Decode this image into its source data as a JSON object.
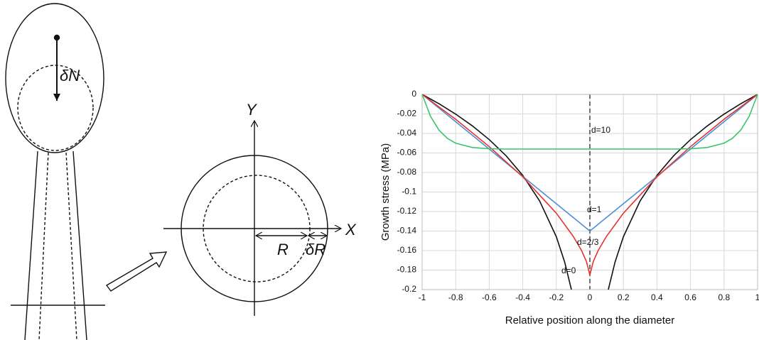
{
  "diagram": {
    "labels": {
      "dN": "δN",
      "y_axis": "Y",
      "x_axis": "X",
      "radius": "R",
      "dR": "δR"
    }
  },
  "chart_data": {
    "type": "line",
    "x_label": "Relative position along the diameter",
    "y_label": "Growth stress (MPa)",
    "xlim": [
      -1,
      1
    ],
    "ylim": [
      -0.2,
      0
    ],
    "xticks": [
      -1,
      -0.8,
      -0.6,
      -0.4,
      -0.2,
      0,
      0.2,
      0.4,
      0.6,
      0.8,
      1
    ],
    "yticks": [
      0,
      -0.02,
      -0.04,
      -0.06,
      -0.08,
      -0.1,
      -0.12,
      -0.14,
      -0.16,
      -0.18,
      -0.2
    ],
    "grid": true,
    "annotations": [
      "d=10",
      "d=1",
      "d=2/3",
      "d=0"
    ],
    "series": [
      {
        "color": "#111111",
        "x": [
          -1,
          -0.9,
          -0.8,
          -0.7,
          -0.6,
          -0.5,
          -0.4,
          -0.3,
          -0.2,
          -0.15,
          -0.11,
          0,
          0.11,
          0.15,
          0.2,
          0.3,
          0.4,
          0.5,
          0.6,
          0.7,
          0.8,
          0.9,
          1
        ],
        "values": [
          0,
          -0.0095,
          -0.0202,
          -0.0323,
          -0.0463,
          -0.0628,
          -0.083,
          -0.109,
          -0.1458,
          -0.1719,
          -0.2,
          null,
          -0.2,
          -0.1719,
          -0.1458,
          -0.109,
          -0.083,
          -0.0628,
          -0.0463,
          -0.0323,
          -0.0202,
          -0.0095,
          0
        ]
      },
      {
        "color": "#4a90d9",
        "x": [
          -1,
          0,
          1
        ],
        "values": [
          0,
          -0.14,
          0
        ]
      },
      {
        "color": "#e8302a",
        "x": [
          -1,
          -0.8,
          -0.6,
          -0.4,
          -0.2,
          -0.1,
          -0.05,
          -0.02,
          0,
          0.02,
          0.05,
          0.1,
          0.2,
          0.4,
          0.6,
          0.8,
          1
        ],
        "values": [
          0,
          -0.0255,
          -0.0535,
          -0.0845,
          -0.1217,
          -0.1452,
          -0.1598,
          -0.1714,
          -0.185,
          -0.1714,
          -0.1598,
          -0.1452,
          -0.1217,
          -0.0845,
          -0.0535,
          -0.0255,
          0
        ]
      },
      {
        "color": "#3cc46a",
        "x": [
          -1,
          -0.95,
          -0.9,
          -0.85,
          -0.8,
          -0.7,
          -0.6,
          -0.5,
          0,
          0.5,
          0.6,
          0.7,
          0.8,
          0.85,
          0.9,
          0.95,
          1
        ],
        "values": [
          0,
          -0.0225,
          -0.0365,
          -0.045,
          -0.05,
          -0.0544,
          -0.0557,
          -0.056,
          -0.056,
          -0.056,
          -0.0557,
          -0.0544,
          -0.05,
          -0.045,
          -0.0365,
          -0.0225,
          0
        ]
      }
    ]
  }
}
